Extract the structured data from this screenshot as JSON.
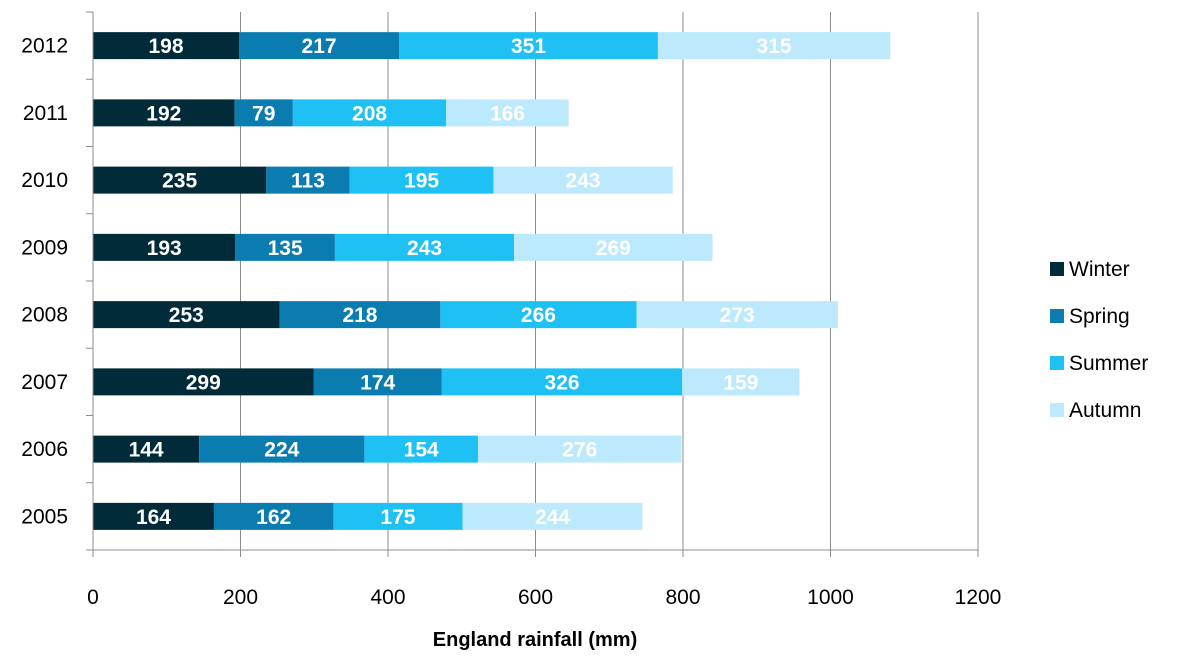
{
  "chart_data": {
    "type": "bar",
    "orientation": "horizontal",
    "stacked": true,
    "title": "",
    "xlabel": "England rainfall (mm)",
    "ylabel": "",
    "xlim": [
      0,
      1200
    ],
    "x_ticks": [
      0,
      200,
      400,
      600,
      800,
      1000,
      1200
    ],
    "grid": "vertical",
    "legend_position": "right",
    "categories": [
      "2012",
      "2011",
      "2010",
      "2009",
      "2008",
      "2007",
      "2006",
      "2005"
    ],
    "series": [
      {
        "name": "Winter",
        "color": "#022B3A",
        "values": [
          198,
          192,
          235,
          193,
          253,
          299,
          144,
          164
        ]
      },
      {
        "name": "Spring",
        "color": "#0A7CB0",
        "values": [
          217,
          79,
          113,
          135,
          218,
          174,
          224,
          162
        ]
      },
      {
        "name": "Summer",
        "color": "#1FC0F3",
        "values": [
          351,
          208,
          195,
          243,
          266,
          326,
          154,
          175
        ]
      },
      {
        "name": "Autumn",
        "color": "#BCE9FB",
        "values": [
          315,
          166,
          243,
          269,
          273,
          159,
          276,
          244
        ]
      }
    ]
  }
}
